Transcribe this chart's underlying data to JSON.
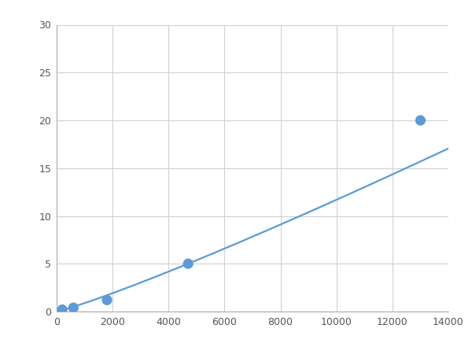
{
  "x_points": [
    200,
    600,
    1800,
    4700,
    13000
  ],
  "y_points": [
    0.2,
    0.4,
    1.2,
    5.0,
    20.0
  ],
  "line_color": "#5B9BD5",
  "marker_color": "#5B9BD5",
  "marker_size": 6,
  "line_width": 1.6,
  "xlim": [
    0,
    14000
  ],
  "ylim": [
    0,
    30
  ],
  "xticks": [
    0,
    2000,
    4000,
    6000,
    8000,
    10000,
    12000,
    14000
  ],
  "yticks": [
    0,
    5,
    10,
    15,
    20,
    25,
    30
  ],
  "grid_color": "#d0d0d0",
  "background_color": "#ffffff",
  "figsize": [
    6.0,
    4.5
  ],
  "dpi": 100
}
